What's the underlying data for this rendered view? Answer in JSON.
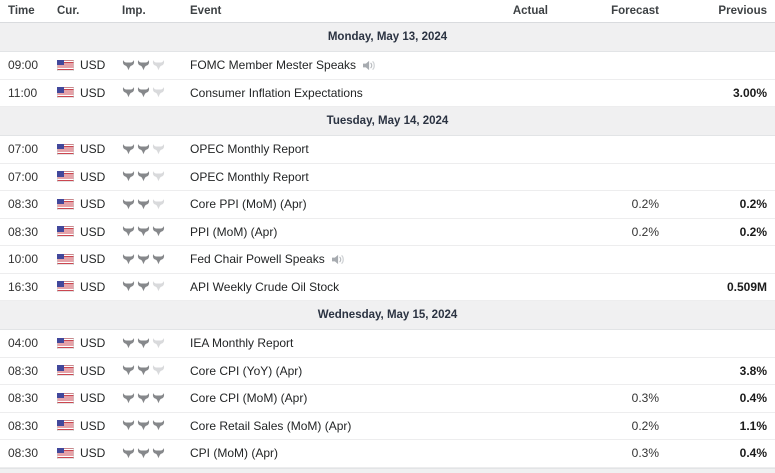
{
  "table": {
    "columns": [
      "Time",
      "Cur.",
      "Imp.",
      "Event",
      "Actual",
      "Forecast",
      "Previous"
    ],
    "currency_flag": "us-flag",
    "importance_max": 3,
    "days": [
      {
        "date_label": "Monday, May 13, 2024",
        "events": [
          {
            "time": "09:00",
            "currency": "USD",
            "importance": 2,
            "event": "FOMC Member Mester Speaks",
            "speech": true,
            "actual": "",
            "forecast": "",
            "previous": ""
          },
          {
            "time": "11:00",
            "currency": "USD",
            "importance": 2,
            "event": "Consumer Inflation Expectations",
            "speech": false,
            "actual": "",
            "forecast": "",
            "previous": "3.00%"
          }
        ]
      },
      {
        "date_label": "Tuesday, May 14, 2024",
        "events": [
          {
            "time": "07:00",
            "currency": "USD",
            "importance": 2,
            "event": "OPEC Monthly Report",
            "speech": false,
            "actual": "",
            "forecast": "",
            "previous": ""
          },
          {
            "time": "07:00",
            "currency": "USD",
            "importance": 2,
            "event": "OPEC Monthly Report",
            "speech": false,
            "actual": "",
            "forecast": "",
            "previous": ""
          },
          {
            "time": "08:30",
            "currency": "USD",
            "importance": 2,
            "event": "Core PPI (MoM) (Apr)",
            "speech": false,
            "actual": "",
            "forecast": "0.2%",
            "previous": "0.2%"
          },
          {
            "time": "08:30",
            "currency": "USD",
            "importance": 3,
            "event": "PPI (MoM) (Apr)",
            "speech": false,
            "actual": "",
            "forecast": "0.2%",
            "previous": "0.2%"
          },
          {
            "time": "10:00",
            "currency": "USD",
            "importance": 3,
            "event": "Fed Chair Powell Speaks",
            "speech": true,
            "actual": "",
            "forecast": "",
            "previous": ""
          },
          {
            "time": "16:30",
            "currency": "USD",
            "importance": 2,
            "event": "API Weekly Crude Oil Stock",
            "speech": false,
            "actual": "",
            "forecast": "",
            "previous": "0.509M"
          }
        ]
      },
      {
        "date_label": "Wednesday, May 15, 2024",
        "events": [
          {
            "time": "04:00",
            "currency": "USD",
            "importance": 2,
            "event": "IEA Monthly Report",
            "speech": false,
            "actual": "",
            "forecast": "",
            "previous": ""
          },
          {
            "time": "08:30",
            "currency": "USD",
            "importance": 2,
            "event": "Core CPI (YoY) (Apr)",
            "speech": false,
            "actual": "",
            "forecast": "",
            "previous": "3.8%"
          },
          {
            "time": "08:30",
            "currency": "USD",
            "importance": 3,
            "event": "Core CPI (MoM) (Apr)",
            "speech": false,
            "actual": "",
            "forecast": "0.3%",
            "previous": "0.4%"
          },
          {
            "time": "08:30",
            "currency": "USD",
            "importance": 3,
            "event": "Core Retail Sales (MoM) (Apr)",
            "speech": false,
            "actual": "",
            "forecast": "0.2%",
            "previous": "1.1%"
          },
          {
            "time": "08:30",
            "currency": "USD",
            "importance": 3,
            "event": "CPI (MoM) (Apr)",
            "speech": false,
            "actual": "",
            "forecast": "0.3%",
            "previous": "0.4%"
          }
        ]
      }
    ],
    "has_partial_next_separator": true
  },
  "colors": {
    "separator_bg": "#f0f0f1",
    "separator_text": "#2b3342",
    "row_border": "#ededee",
    "bull_active": "#86888b",
    "bull_inactive": "#d9dadc",
    "flag_red": "#cb4650",
    "flag_blue": "#41479b",
    "header_text": "#3d4144",
    "body_text": "#232526"
  }
}
